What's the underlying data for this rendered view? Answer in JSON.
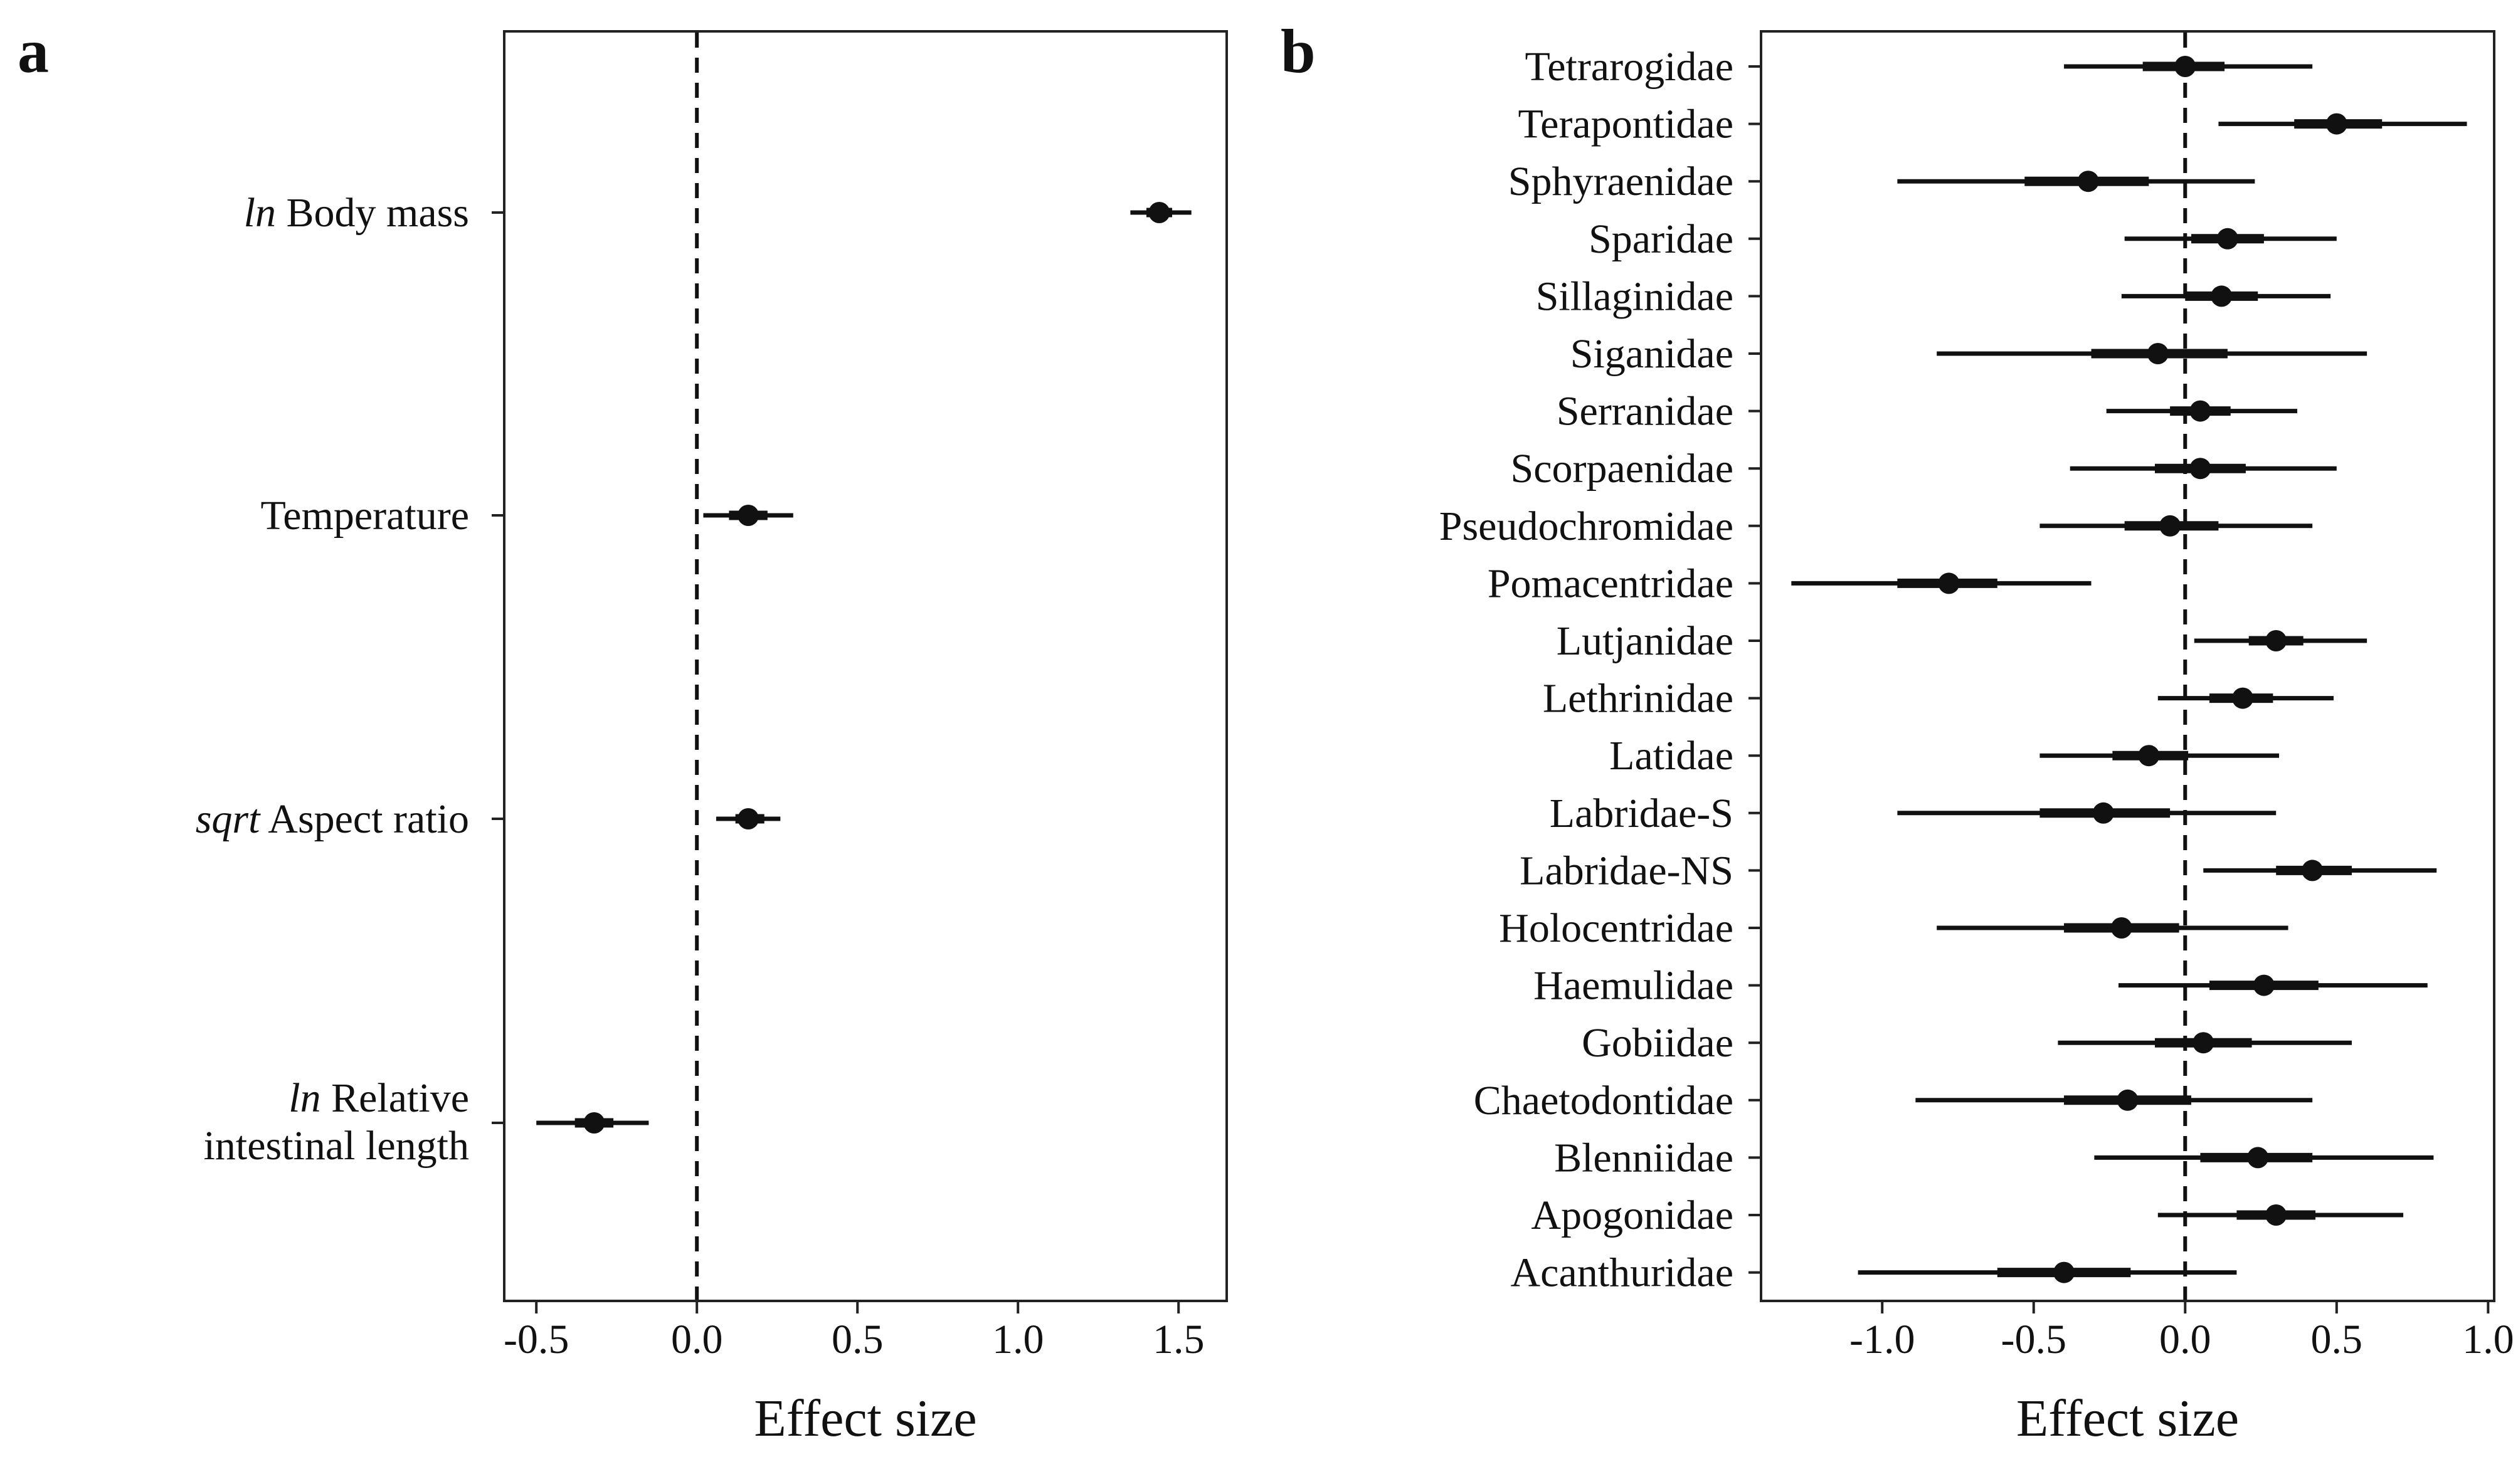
{
  "chart_data": [
    {
      "type": "forest",
      "panel_letter": "a",
      "xlabel": "Effect size",
      "ylabel": "",
      "xlim": [
        -0.6,
        1.65
      ],
      "xticks": [
        -0.5,
        0.0,
        0.5,
        1.0,
        1.5
      ],
      "xtick_labels": [
        "-0.5",
        "0.0",
        "0.5",
        "1.0",
        "1.5"
      ],
      "reference_line": 0,
      "grid": false,
      "rows": [
        {
          "label_italic": "ln",
          "label": " Body mass",
          "label_line2": "",
          "estimate": 1.44,
          "inner": [
            1.4,
            1.48
          ],
          "outer": [
            1.35,
            1.54
          ]
        },
        {
          "label_italic": "",
          "label": "Temperature",
          "label_line2": "",
          "estimate": 0.16,
          "inner": [
            0.1,
            0.22
          ],
          "outer": [
            0.02,
            0.3
          ]
        },
        {
          "label_italic": "sqrt",
          "label": " Aspect ratio",
          "label_line2": "",
          "estimate": 0.16,
          "inner": [
            0.12,
            0.21
          ],
          "outer": [
            0.06,
            0.26
          ]
        },
        {
          "label_italic": "ln",
          "label": " Relative",
          "label_line2": "intestinal length",
          "estimate": -0.32,
          "inner": [
            -0.38,
            -0.26
          ],
          "outer": [
            -0.5,
            -0.15
          ]
        }
      ]
    },
    {
      "type": "forest",
      "panel_letter": "b",
      "xlabel": "Effect size",
      "ylabel": "",
      "xlim": [
        -1.4,
        1.02
      ],
      "xticks": [
        -1.0,
        -0.5,
        0.0,
        0.5,
        1.0
      ],
      "xtick_labels": [
        "-1.0",
        "-0.5",
        "0.0",
        "0.5",
        "1.0"
      ],
      "reference_line": 0,
      "grid": false,
      "rows": [
        {
          "label": "Tetrarogidae",
          "estimate": 0.0,
          "inner": [
            -0.14,
            0.13
          ],
          "outer": [
            -0.4,
            0.42
          ]
        },
        {
          "label": "Terapontidae",
          "estimate": 0.5,
          "inner": [
            0.36,
            0.65
          ],
          "outer": [
            0.11,
            0.93
          ]
        },
        {
          "label": "Sphyraenidae",
          "estimate": -0.32,
          "inner": [
            -0.53,
            -0.12
          ],
          "outer": [
            -0.95,
            0.23
          ]
        },
        {
          "label": "Sparidae",
          "estimate": 0.14,
          "inner": [
            0.02,
            0.26
          ],
          "outer": [
            -0.2,
            0.5
          ]
        },
        {
          "label": "Sillaginidae",
          "estimate": 0.12,
          "inner": [
            0.0,
            0.24
          ],
          "outer": [
            -0.21,
            0.48
          ]
        },
        {
          "label": "Siganidae",
          "estimate": -0.09,
          "inner": [
            -0.31,
            0.14
          ],
          "outer": [
            -0.82,
            0.6
          ]
        },
        {
          "label": "Serranidae",
          "estimate": 0.05,
          "inner": [
            -0.05,
            0.15
          ],
          "outer": [
            -0.26,
            0.37
          ]
        },
        {
          "label": "Scorpaenidae",
          "estimate": 0.05,
          "inner": [
            -0.1,
            0.2
          ],
          "outer": [
            -0.38,
            0.5
          ]
        },
        {
          "label": "Pseudochromidae",
          "estimate": -0.05,
          "inner": [
            -0.2,
            0.11
          ],
          "outer": [
            -0.48,
            0.42
          ]
        },
        {
          "label": "Pomacentridae",
          "estimate": -0.78,
          "inner": [
            -0.95,
            -0.62
          ],
          "outer": [
            -1.3,
            -0.31
          ]
        },
        {
          "label": "Lutjanidae",
          "estimate": 0.3,
          "inner": [
            0.21,
            0.39
          ],
          "outer": [
            0.03,
            0.6
          ]
        },
        {
          "label": "Lethrinidae",
          "estimate": 0.19,
          "inner": [
            0.08,
            0.29
          ],
          "outer": [
            -0.09,
            0.49
          ]
        },
        {
          "label": "Latidae",
          "estimate": -0.12,
          "inner": [
            -0.24,
            0.01
          ],
          "outer": [
            -0.48,
            0.31
          ]
        },
        {
          "label": "Labridae-S",
          "estimate": -0.27,
          "inner": [
            -0.48,
            -0.05
          ],
          "outer": [
            -0.95,
            0.3
          ]
        },
        {
          "label": "Labridae-NS",
          "estimate": 0.42,
          "inner": [
            0.3,
            0.55
          ],
          "outer": [
            0.06,
            0.83
          ]
        },
        {
          "label": "Holocentridae",
          "estimate": -0.21,
          "inner": [
            -0.4,
            -0.02
          ],
          "outer": [
            -0.82,
            0.34
          ]
        },
        {
          "label": "Haemulidae",
          "estimate": 0.26,
          "inner": [
            0.08,
            0.44
          ],
          "outer": [
            -0.22,
            0.8
          ]
        },
        {
          "label": "Gobiidae",
          "estimate": 0.06,
          "inner": [
            -0.1,
            0.22
          ],
          "outer": [
            -0.42,
            0.55
          ]
        },
        {
          "label": "Chaetodontidae",
          "estimate": -0.19,
          "inner": [
            -0.4,
            0.02
          ],
          "outer": [
            -0.89,
            0.42
          ]
        },
        {
          "label": "Blenniidae",
          "estimate": 0.24,
          "inner": [
            0.05,
            0.42
          ],
          "outer": [
            -0.3,
            0.82
          ]
        },
        {
          "label": "Apogonidae",
          "estimate": 0.3,
          "inner": [
            0.17,
            0.43
          ],
          "outer": [
            -0.09,
            0.72
          ]
        },
        {
          "label": "Acanthuridae",
          "estimate": -0.4,
          "inner": [
            -0.62,
            -0.18
          ],
          "outer": [
            -1.08,
            0.17
          ]
        }
      ]
    }
  ]
}
